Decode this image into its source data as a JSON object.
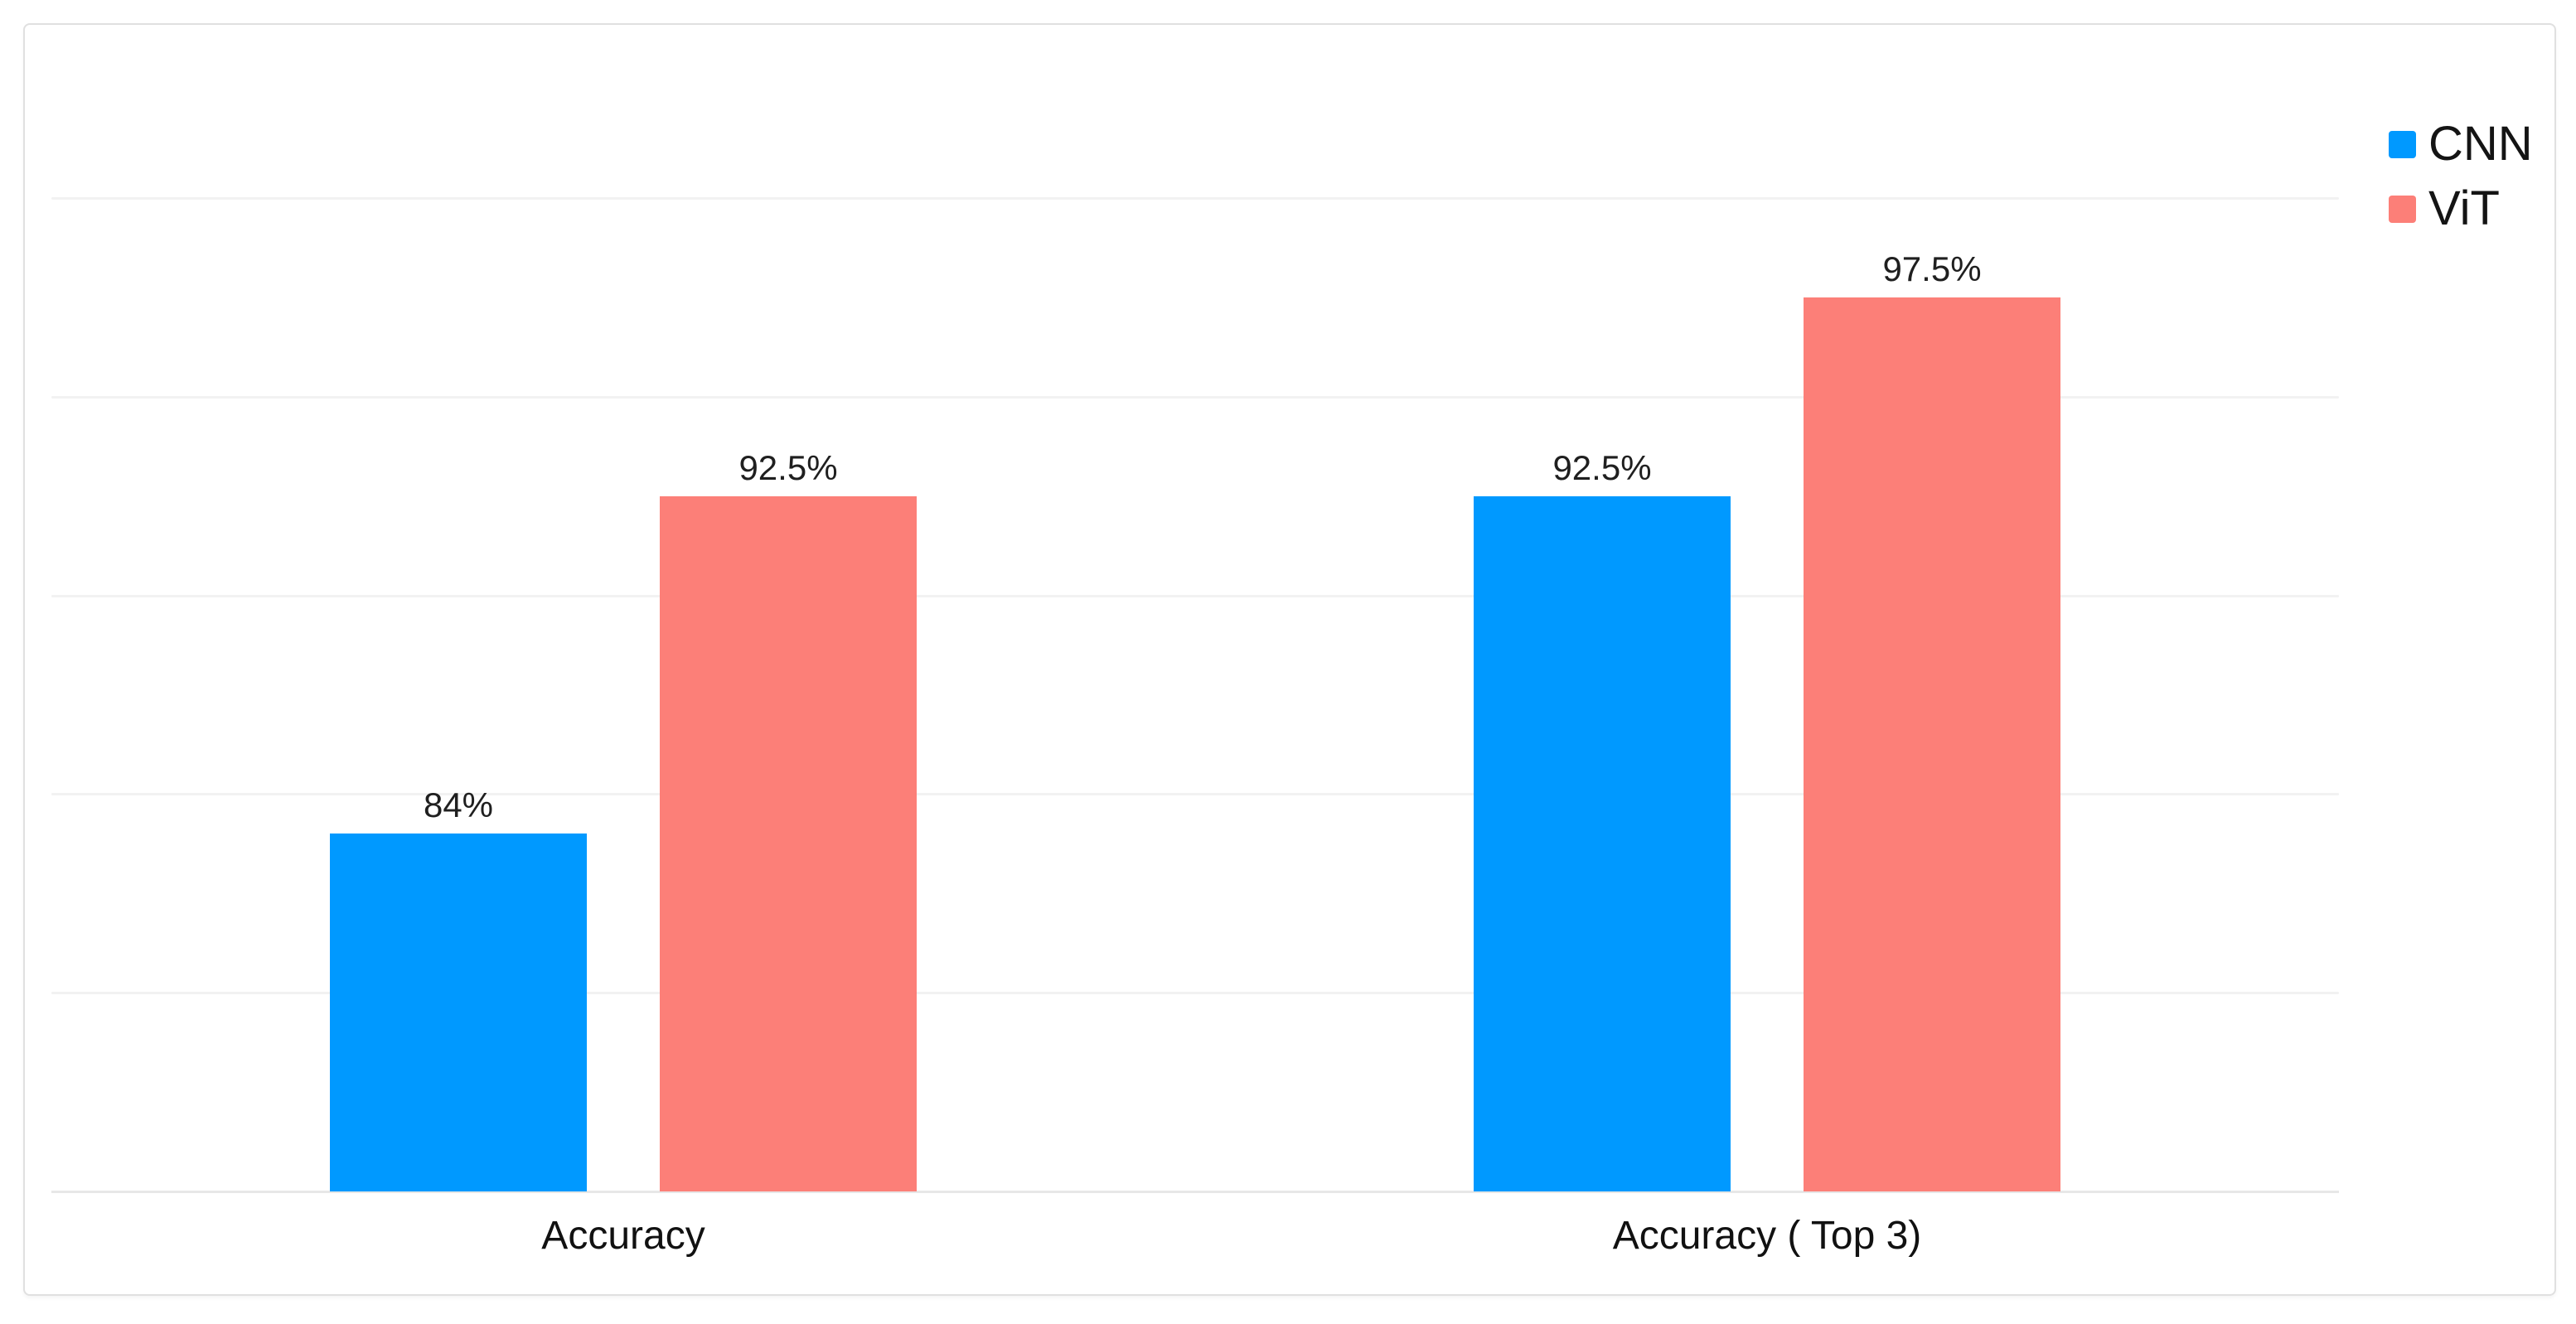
{
  "chart_data": {
    "type": "bar",
    "title": "",
    "xlabel": "",
    "ylabel": "",
    "categories": [
      "Accuracy",
      "Accuracy ( Top 3)"
    ],
    "series": [
      {
        "name": "CNN",
        "values": [
          84,
          92.5
        ],
        "labels": [
          "84%",
          "92.5%"
        ],
        "color": "#0099ff"
      },
      {
        "name": "ViT",
        "values": [
          92.5,
          97.5
        ],
        "labels": [
          "92.5%",
          "97.5%"
        ],
        "color": "#fc7f78"
      }
    ],
    "ylim": [
      75,
      100
    ],
    "gridline_step": 5,
    "grid": true,
    "y_tick_labels_visible": false,
    "legend_position": "top-right",
    "legend": [
      "CNN",
      "ViT"
    ]
  },
  "colors": {
    "cnn": "#0099ff",
    "vit": "#fc7f78",
    "gridline": "#f2f2f2",
    "axis_line": "#e7e7e7",
    "card_border": "#e0e0e0",
    "text": "#1f1f1f",
    "background": "#ffffff"
  }
}
